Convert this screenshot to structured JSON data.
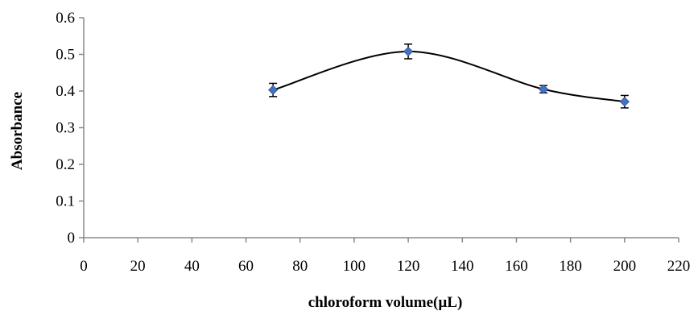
{
  "chart_data": {
    "type": "scatter",
    "xlabel": "chloroform volume(µL)",
    "ylabel": "Absorbance",
    "xlim": [
      0,
      220
    ],
    "ylim": [
      0,
      0.6
    ],
    "x_ticks": [
      "0",
      "20",
      "40",
      "60",
      "80",
      "100",
      "120",
      "140",
      "160",
      "180",
      "200",
      "220"
    ],
    "y_ticks": [
      "0",
      "0.1",
      "0.2",
      "0.3",
      "0.4",
      "0.5",
      "0.6"
    ],
    "grid": false,
    "legend": "none",
    "series": [
      {
        "x": [
          70,
          120,
          170,
          200
        ],
        "y": [
          0.403,
          0.508,
          0.405,
          0.371
        ],
        "error": [
          0.018,
          0.02,
          0.01,
          0.017
        ],
        "marker_color": "#4472c4",
        "line_color": "#000000",
        "smoothed_line": true
      }
    ]
  }
}
